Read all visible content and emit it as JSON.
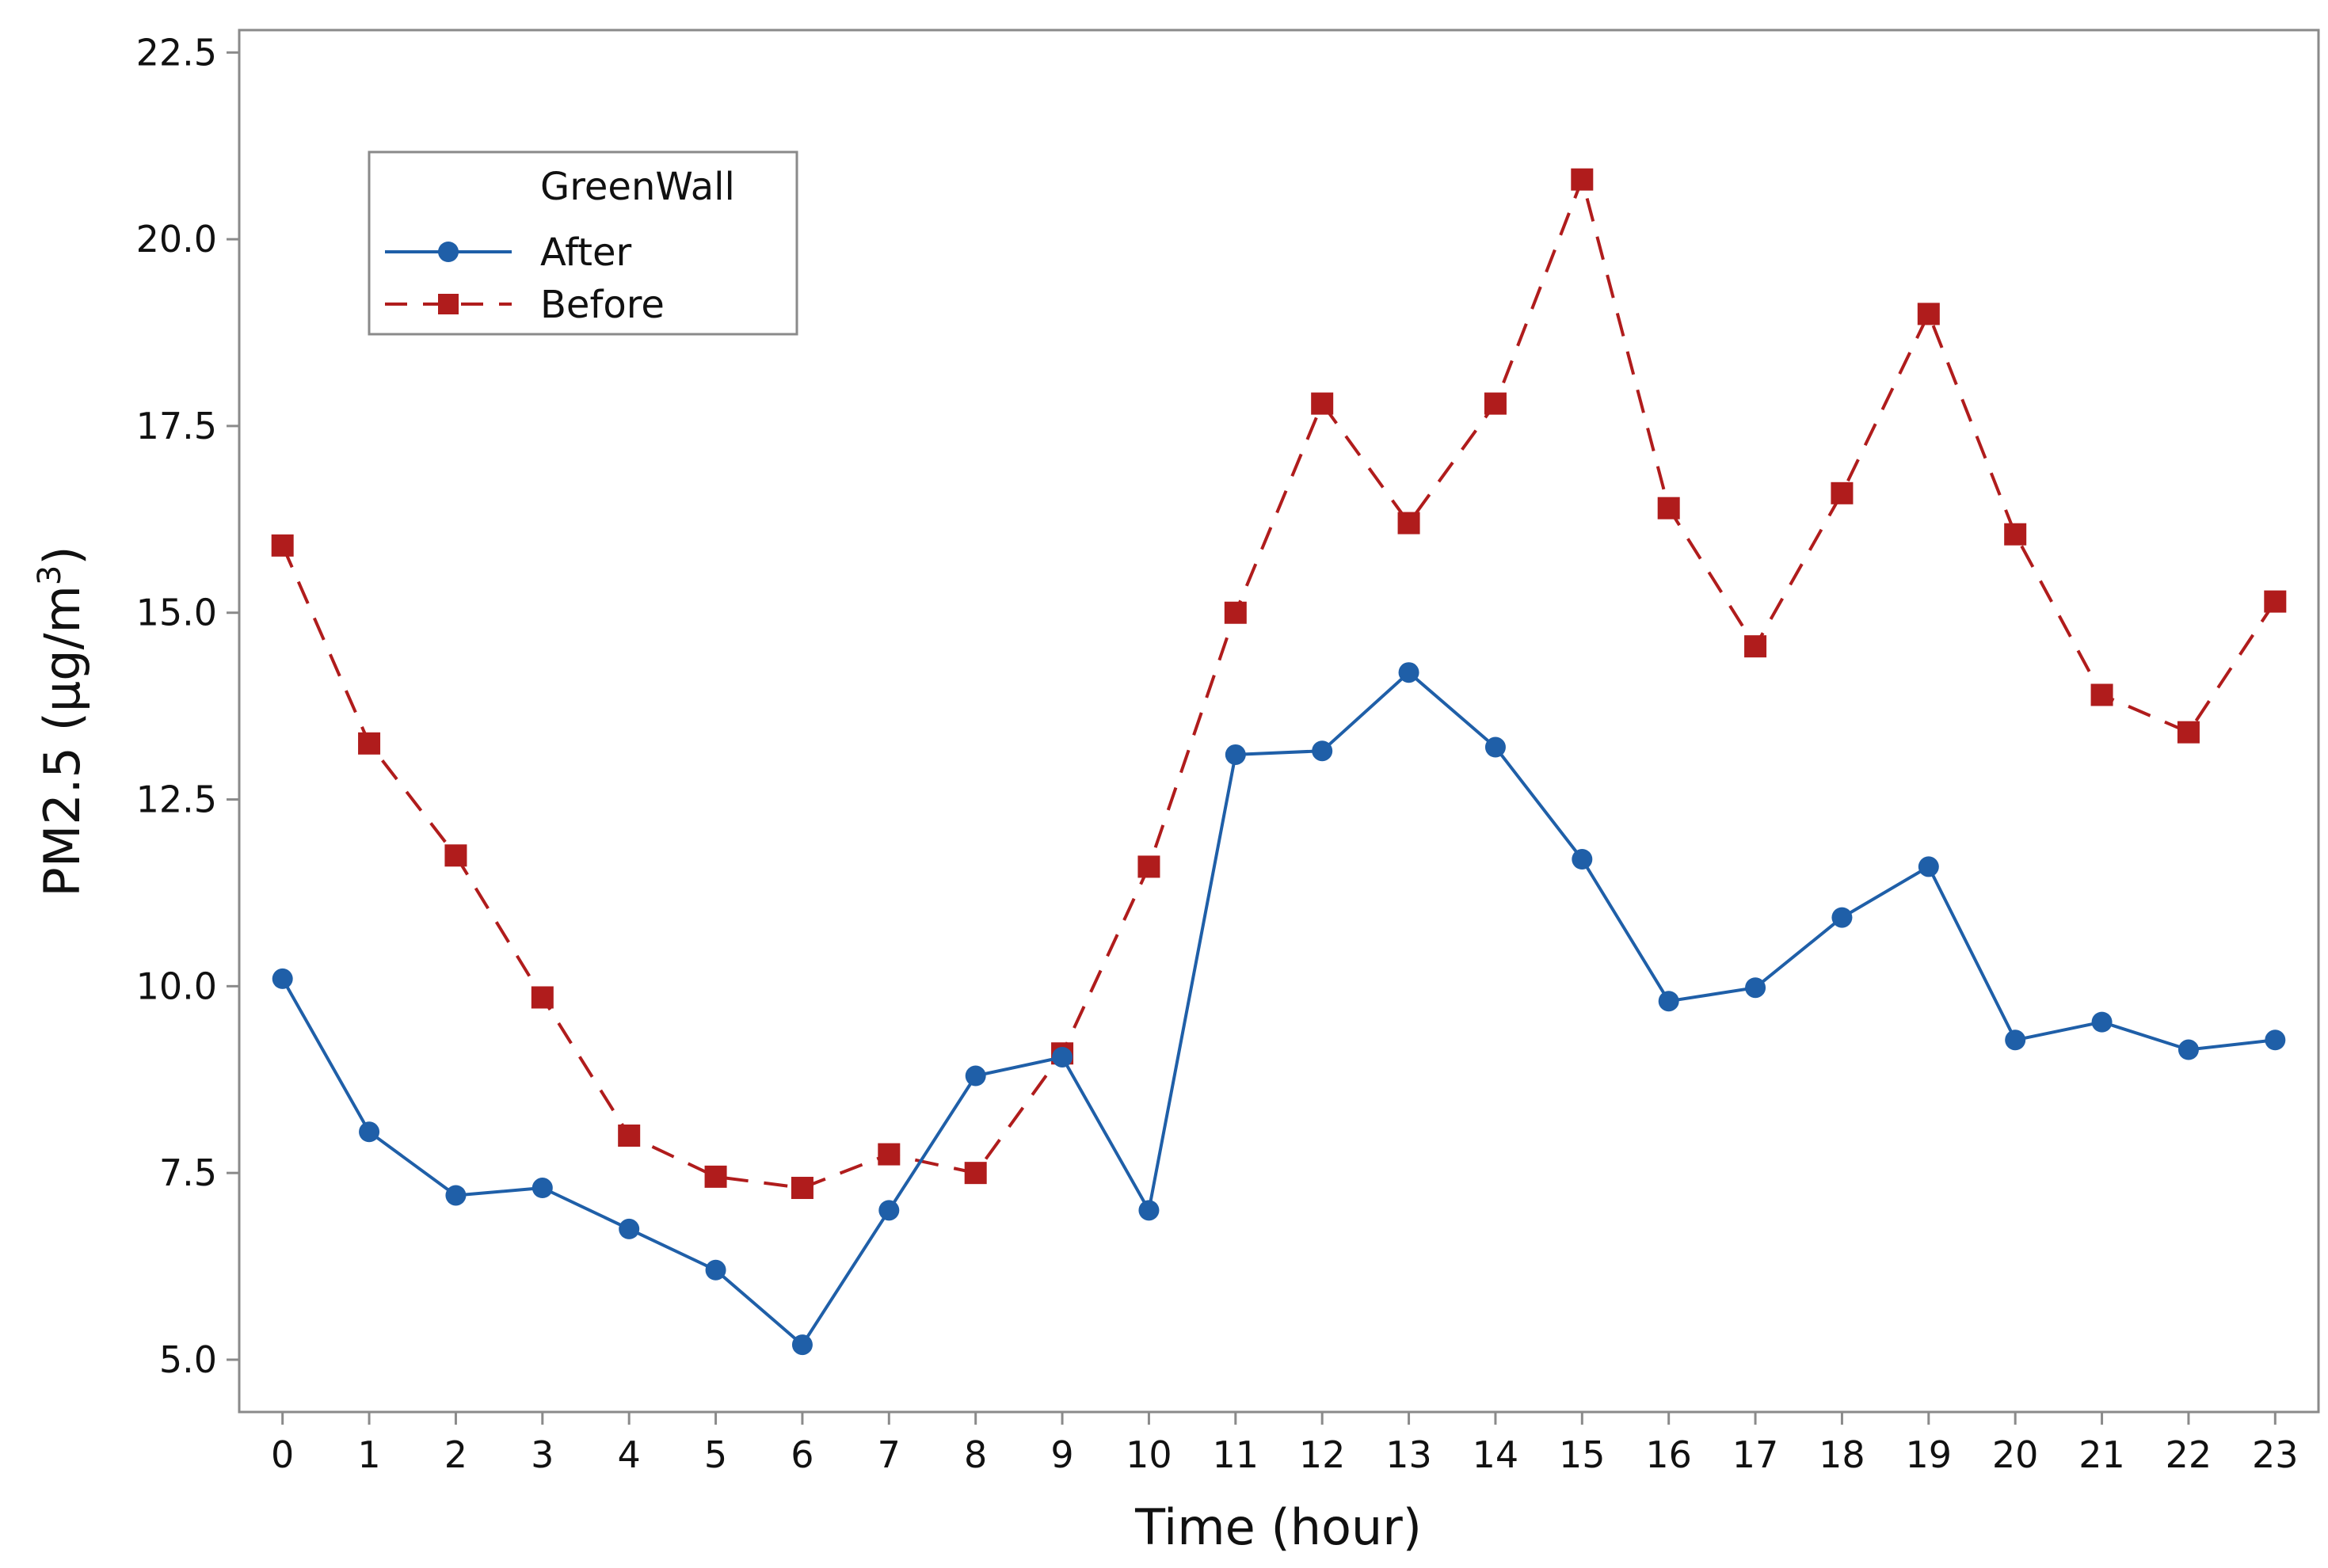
{
  "chart_data": {
    "type": "line",
    "title": "",
    "xlabel": "Time (hour)",
    "ylabel": "PM2.5 (μg/m³)",
    "ylabel_parts": {
      "main": "PM2.5 (μg/m",
      "sup": "3",
      "tail": ")"
    },
    "x": [
      0,
      1,
      2,
      3,
      4,
      5,
      6,
      7,
      8,
      9,
      10,
      11,
      12,
      13,
      14,
      15,
      16,
      17,
      18,
      19,
      20,
      21,
      22,
      23
    ],
    "x_tick_labels": [
      "0",
      "1",
      "2",
      "3",
      "4",
      "5",
      "6",
      "7",
      "8",
      "9",
      "10",
      "11",
      "12",
      "13",
      "14",
      "15",
      "16",
      "17",
      "18",
      "19",
      "20",
      "21",
      "22",
      "23"
    ],
    "y_ticks": [
      5.0,
      7.5,
      10.0,
      12.5,
      15.0,
      17.5,
      20.0,
      22.5
    ],
    "y_tick_labels": [
      "5.0",
      "7.5",
      "10.0",
      "12.5",
      "15.0",
      "17.5",
      "20.0",
      "22.5"
    ],
    "xlim": [
      -0.5,
      23.5
    ],
    "ylim": [
      4.3,
      22.8
    ],
    "grid": false,
    "legend": {
      "title": "GreenWall",
      "placement": "top-left"
    },
    "series": [
      {
        "name": "After",
        "color": "#1f5fa8",
        "line_style": "solid",
        "marker": "circle",
        "values": [
          10.1,
          8.05,
          7.2,
          7.3,
          6.75,
          6.2,
          5.2,
          7.0,
          8.8,
          9.05,
          7.0,
          13.1,
          13.15,
          14.2,
          13.2,
          11.7,
          9.8,
          9.98,
          10.92,
          11.6,
          9.28,
          9.52,
          9.15,
          9.28
        ]
      },
      {
        "name": "Before",
        "color": "#b01c1c",
        "line_style": "dashed",
        "marker": "square",
        "values": [
          15.9,
          13.25,
          11.75,
          9.85,
          8.0,
          7.45,
          7.3,
          7.75,
          7.5,
          9.1,
          11.6,
          15.0,
          17.8,
          16.2,
          17.8,
          20.8,
          16.4,
          14.55,
          16.6,
          19.0,
          16.05,
          13.9,
          13.4,
          15.15
        ]
      }
    ]
  }
}
